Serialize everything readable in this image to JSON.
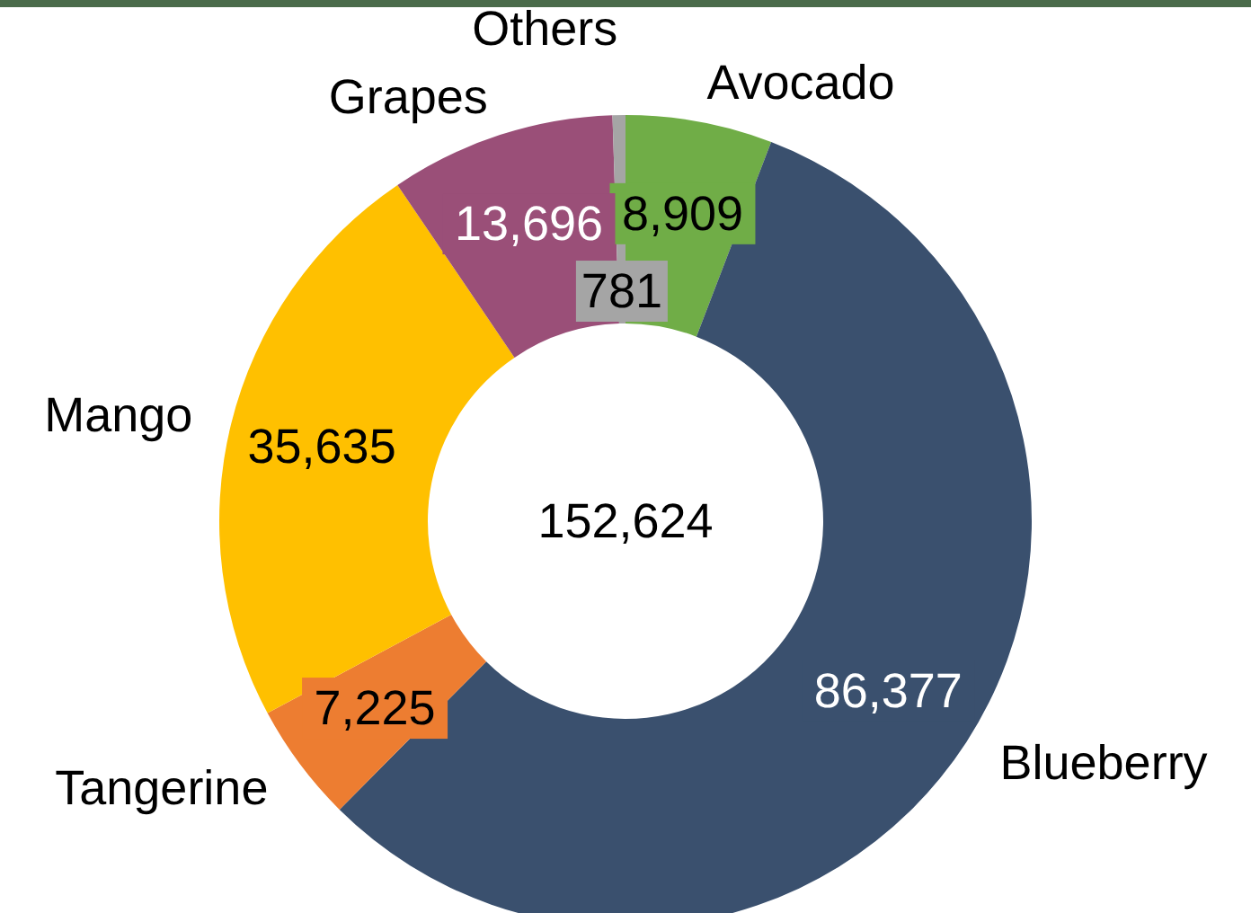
{
  "chart_data": {
    "type": "donut",
    "categories": [
      "Avocado",
      "Blueberry",
      "Tangerine",
      "Mango",
      "Grapes",
      "Others"
    ],
    "values": [
      8909,
      86377,
      7225,
      35635,
      13696,
      781
    ],
    "colors": [
      "#70ad47",
      "#3a506e",
      "#ed7d31",
      "#ffc000",
      "#9a4f78",
      "#a5a5a5"
    ],
    "value_labels": [
      "8,909",
      "86,377",
      "7,225",
      "35,635",
      "13,696",
      "781"
    ],
    "annotations": [
      "152,624"
    ]
  }
}
